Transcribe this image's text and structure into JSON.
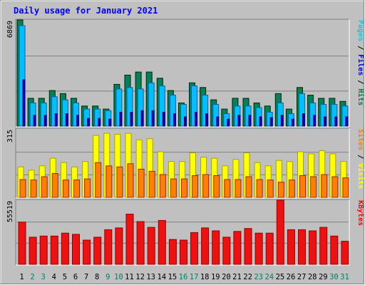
{
  "chart_data": {
    "type": "bar",
    "title": "Daily usage for January 2021",
    "categories": [
      "1",
      "2",
      "3",
      "4",
      "5",
      "6",
      "7",
      "8",
      "9",
      "10",
      "11",
      "12",
      "13",
      "14",
      "15",
      "16",
      "17",
      "18",
      "19",
      "20",
      "21",
      "22",
      "23",
      "24",
      "25",
      "26",
      "27",
      "28",
      "29",
      "30",
      "31"
    ],
    "weekend_days": [
      "2",
      "3",
      "9",
      "10",
      "16",
      "17",
      "23",
      "24",
      "30",
      "31"
    ],
    "panels": [
      {
        "name": "hits-files-pages",
        "max_label": "6869",
        "ymax": 6869,
        "axis_labels": [
          {
            "text": "Pages",
            "color": "#00ccff"
          },
          {
            "text": "Files",
            "color": "#0000ff"
          },
          {
            "text": "Hits",
            "color": "#008040"
          }
        ],
        "series": [
          {
            "name": "Hits",
            "color": "#00805c",
            "values": [
              6869,
              1800,
              1800,
              2300,
              2100,
              1800,
              1300,
              1300,
              1100,
              2700,
              3300,
              3500,
              3500,
              3100,
              2300,
              1500,
              2800,
              2500,
              1700,
              1100,
              1800,
              1800,
              1500,
              1300,
              2100,
              1100,
              2500,
              2000,
              1800,
              1800,
              1600
            ]
          },
          {
            "name": "Files",
            "color": "#00bfff",
            "values": [
              6500,
              1500,
              1500,
              1900,
              1700,
              1500,
              1100,
              1100,
              1000,
              2400,
              2500,
              2400,
              2800,
              2600,
              2000,
              1400,
              2600,
              2000,
              1400,
              800,
              1300,
              1300,
              1200,
              900,
              1500,
              800,
              2100,
              1500,
              1400,
              1400,
              1300
            ]
          },
          {
            "name": "Pages",
            "color": "#0000cc",
            "values": [
              3000,
              700,
              700,
              800,
              800,
              700,
              500,
              500,
              450,
              900,
              900,
              1000,
              1000,
              900,
              800,
              600,
              900,
              800,
              600,
              450,
              700,
              700,
              600,
              550,
              700,
              450,
              800,
              700,
              600,
              600,
              600
            ]
          }
        ]
      },
      {
        "name": "visits-sites",
        "max_label": "315",
        "ymax": 315,
        "axis_labels": [
          {
            "text": "Sites",
            "color": "#ff8000"
          },
          {
            "text": "Visits",
            "color": "#ffff00"
          }
        ],
        "series": [
          {
            "name": "Visits",
            "color": "#ffff00",
            "values": [
              140,
              125,
              145,
              180,
              160,
              140,
              165,
              285,
              295,
              290,
              295,
              265,
              270,
              210,
              165,
              165,
              205,
              185,
              180,
              145,
              175,
              205,
              160,
              145,
              170,
              165,
              210,
              200,
              215,
              200,
              165
            ]
          },
          {
            "name": "Sites",
            "color": "#ff8000",
            "values": [
              82,
              80,
              95,
              110,
              80,
              80,
              85,
              160,
              145,
              140,
              155,
              130,
              120,
              105,
              85,
              85,
              100,
              105,
              100,
              82,
              82,
              95,
              82,
              80,
              70,
              80,
              100,
              95,
              105,
              95,
              90
            ]
          }
        ]
      },
      {
        "name": "kbytes",
        "max_label": "55519",
        "ymax": 55519,
        "axis_labels": [
          {
            "text": "KBytes",
            "color": "#ff0000"
          }
        ],
        "series": [
          {
            "name": "KBytes",
            "color": "#ee1111",
            "values": [
              36500,
              23500,
              24500,
              24500,
              27000,
              26000,
              21000,
              23500,
              30000,
              31500,
              43500,
              37000,
              32000,
              38000,
              21500,
              21000,
              27500,
              31500,
              29000,
              23500,
              28500,
              31000,
              27000,
              27000,
              55519,
              30000,
              30000,
              29000,
              32000,
              24500,
              20000
            ]
          }
        ]
      }
    ]
  }
}
